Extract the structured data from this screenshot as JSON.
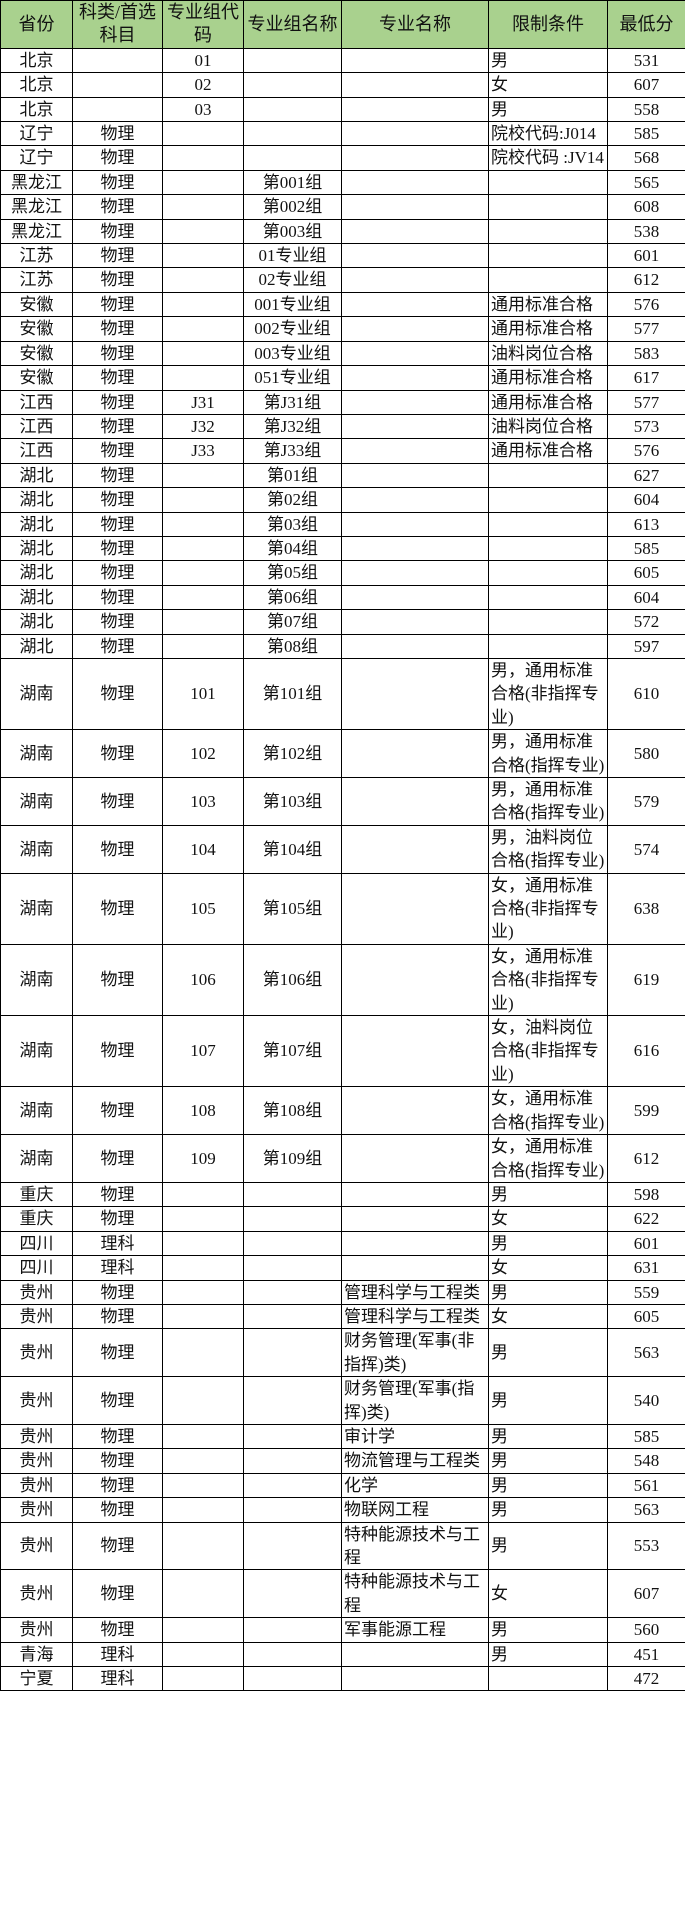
{
  "header_color": "#a9d18e",
  "columns": [
    "省份",
    "科类/首选科目",
    "专业组代码",
    "专业组名称",
    "专业名称",
    "限制条件",
    "最低分"
  ],
  "rows": [
    [
      "北京",
      "",
      "01",
      "",
      "",
      "男",
      "531"
    ],
    [
      "北京",
      "",
      "02",
      "",
      "",
      "女",
      "607"
    ],
    [
      "北京",
      "",
      "03",
      "",
      "",
      "男",
      "558"
    ],
    [
      "辽宁",
      "物理",
      "",
      "",
      "",
      "院校代码:J014",
      "585"
    ],
    [
      "辽宁",
      "物理",
      "",
      "",
      "",
      "院校代码 :JV14",
      "568"
    ],
    [
      "黑龙江",
      "物理",
      "",
      "第001组",
      "",
      "",
      "565"
    ],
    [
      "黑龙江",
      "物理",
      "",
      "第002组",
      "",
      "",
      "608"
    ],
    [
      "黑龙江",
      "物理",
      "",
      "第003组",
      "",
      "",
      "538"
    ],
    [
      "江苏",
      "物理",
      "",
      "01专业组",
      "",
      "",
      "601"
    ],
    [
      "江苏",
      "物理",
      "",
      "02专业组",
      "",
      "",
      "612"
    ],
    [
      "安徽",
      "物理",
      "",
      "001专业组",
      "",
      "通用标准合格",
      "576"
    ],
    [
      "安徽",
      "物理",
      "",
      "002专业组",
      "",
      "通用标准合格",
      "577"
    ],
    [
      "安徽",
      "物理",
      "",
      "003专业组",
      "",
      "油料岗位合格",
      "583"
    ],
    [
      "安徽",
      "物理",
      "",
      "051专业组",
      "",
      "通用标准合格",
      "617"
    ],
    [
      "江西",
      "物理",
      "J31",
      "第J31组",
      "",
      "通用标准合格",
      "577"
    ],
    [
      "江西",
      "物理",
      "J32",
      "第J32组",
      "",
      "油料岗位合格",
      "573"
    ],
    [
      "江西",
      "物理",
      "J33",
      "第J33组",
      "",
      "通用标准合格",
      "576"
    ],
    [
      "湖北",
      "物理",
      "",
      "第01组",
      "",
      "",
      "627"
    ],
    [
      "湖北",
      "物理",
      "",
      "第02组",
      "",
      "",
      "604"
    ],
    [
      "湖北",
      "物理",
      "",
      "第03组",
      "",
      "",
      "613"
    ],
    [
      "湖北",
      "物理",
      "",
      "第04组",
      "",
      "",
      "585"
    ],
    [
      "湖北",
      "物理",
      "",
      "第05组",
      "",
      "",
      "605"
    ],
    [
      "湖北",
      "物理",
      "",
      "第06组",
      "",
      "",
      "604"
    ],
    [
      "湖北",
      "物理",
      "",
      "第07组",
      "",
      "",
      "572"
    ],
    [
      "湖北",
      "物理",
      "",
      "第08组",
      "",
      "",
      "597"
    ],
    [
      "湖南",
      "物理",
      "101",
      "第101组",
      "",
      "男，通用标准合格(非指挥专业)",
      "610"
    ],
    [
      "湖南",
      "物理",
      "102",
      "第102组",
      "",
      "男，通用标准合格(指挥专业)",
      "580"
    ],
    [
      "湖南",
      "物理",
      "103",
      "第103组",
      "",
      "男，通用标准合格(指挥专业)",
      "579"
    ],
    [
      "湖南",
      "物理",
      "104",
      "第104组",
      "",
      "男，油料岗位合格(指挥专业)",
      "574"
    ],
    [
      "湖南",
      "物理",
      "105",
      "第105组",
      "",
      "女，通用标准合格(非指挥专业)",
      "638"
    ],
    [
      "湖南",
      "物理",
      "106",
      "第106组",
      "",
      "女，通用标准合格(非指挥专业)",
      "619"
    ],
    [
      "湖南",
      "物理",
      "107",
      "第107组",
      "",
      "女，油料岗位合格(非指挥专业)",
      "616"
    ],
    [
      "湖南",
      "物理",
      "108",
      "第108组",
      "",
      "女，通用标准合格(指挥专业)",
      "599"
    ],
    [
      "湖南",
      "物理",
      "109",
      "第109组",
      "",
      "女，通用标准合格(指挥专业)",
      "612"
    ],
    [
      "重庆",
      "物理",
      "",
      "",
      "",
      "男",
      "598"
    ],
    [
      "重庆",
      "物理",
      "",
      "",
      "",
      "女",
      "622"
    ],
    [
      "四川",
      "理科",
      "",
      "",
      "",
      "男",
      "601"
    ],
    [
      "四川",
      "理科",
      "",
      "",
      "",
      "女",
      "631"
    ],
    [
      "贵州",
      "物理",
      "",
      "",
      "管理科学与工程类",
      "男",
      "559"
    ],
    [
      "贵州",
      "物理",
      "",
      "",
      "管理科学与工程类",
      "女",
      "605"
    ],
    [
      "贵州",
      "物理",
      "",
      "",
      "财务管理(军事(非指挥)类)",
      "男",
      "563"
    ],
    [
      "贵州",
      "物理",
      "",
      "",
      "财务管理(军事(指挥)类)",
      "男",
      "540"
    ],
    [
      "贵州",
      "物理",
      "",
      "",
      "审计学",
      "男",
      "585"
    ],
    [
      "贵州",
      "物理",
      "",
      "",
      "物流管理与工程类",
      "男",
      "548"
    ],
    [
      "贵州",
      "物理",
      "",
      "",
      "化学",
      "男",
      "561"
    ],
    [
      "贵州",
      "物理",
      "",
      "",
      "物联网工程",
      "男",
      "563"
    ],
    [
      "贵州",
      "物理",
      "",
      "",
      "特种能源技术与工程",
      "男",
      "553"
    ],
    [
      "贵州",
      "物理",
      "",
      "",
      "特种能源技术与工程",
      "女",
      "607"
    ],
    [
      "贵州",
      "物理",
      "",
      "",
      "军事能源工程",
      "男",
      "560"
    ],
    [
      "青海",
      "理科",
      "",
      "",
      "",
      "男",
      "451"
    ],
    [
      "宁夏",
      "理科",
      "",
      "",
      "",
      "",
      "472"
    ]
  ]
}
